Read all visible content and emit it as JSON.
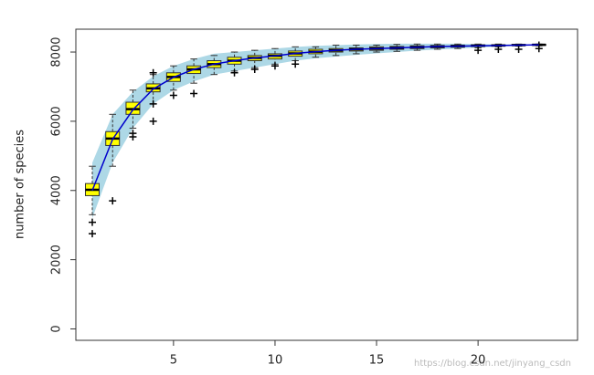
{
  "chart_data": {
    "type": "boxplot",
    "ylabel": "number of species",
    "x": [
      1,
      2,
      3,
      4,
      5,
      6,
      7,
      8,
      9,
      10,
      11,
      12,
      13,
      14,
      15,
      16,
      17,
      18,
      19,
      20,
      21,
      22,
      23
    ],
    "xlim": [
      0.19,
      24.9
    ],
    "xticks": [
      5,
      10,
      15,
      20
    ],
    "ylim": [
      -330,
      8660
    ],
    "yticks": [
      0,
      2000,
      4000,
      6000,
      8000
    ],
    "band": {
      "color": "#add8e6",
      "lower": [
        3200,
        4800,
        5800,
        6500,
        6900,
        7150,
        7350,
        7450,
        7550,
        7650,
        7750,
        7820,
        7870,
        7920,
        7960,
        8000,
        8040,
        8070,
        8100,
        8130,
        8160,
        8180,
        8200
      ],
      "upper": [
        4800,
        6200,
        6850,
        7300,
        7600,
        7800,
        7950,
        8000,
        8050,
        8100,
        8150,
        8180,
        8200,
        8220,
        8230,
        8240,
        8240,
        8240,
        8240,
        8230,
        8220,
        8220,
        8220
      ]
    },
    "mean": {
      "color": "#0000cc",
      "values": [
        4000,
        5480,
        6330,
        6930,
        7270,
        7500,
        7650,
        7750,
        7830,
        7890,
        7960,
        8010,
        8050,
        8080,
        8100,
        8120,
        8140,
        8160,
        8170,
        8180,
        8190,
        8200,
        8210
      ]
    },
    "box_color": "#ffff00",
    "boxes": [
      {
        "whislo": 3300,
        "q1": 3850,
        "med": 4020,
        "q3": 4200,
        "whishi": 4700,
        "fliers": [
          3080,
          2750
        ]
      },
      {
        "whislo": 4700,
        "q1": 5300,
        "med": 5500,
        "q3": 5700,
        "whishi": 6200,
        "fliers": [
          3700
        ]
      },
      {
        "whislo": 5800,
        "q1": 6200,
        "med": 6350,
        "q3": 6550,
        "whishi": 6900,
        "fliers": [
          5550,
          5650
        ]
      },
      {
        "whislo": 6500,
        "q1": 6850,
        "med": 6950,
        "q3": 7080,
        "whishi": 7350,
        "fliers": [
          6000,
          6500,
          7400
        ]
      },
      {
        "whislo": 6900,
        "q1": 7150,
        "med": 7280,
        "q3": 7400,
        "whishi": 7600,
        "fliers": [
          6750
        ]
      },
      {
        "whislo": 7100,
        "q1": 7380,
        "med": 7500,
        "q3": 7600,
        "whishi": 7800,
        "fliers": [
          6800
        ]
      },
      {
        "whislo": 7350,
        "q1": 7550,
        "med": 7650,
        "q3": 7750,
        "whishi": 7900,
        "fliers": []
      },
      {
        "whislo": 7450,
        "q1": 7650,
        "med": 7750,
        "q3": 7850,
        "whishi": 8000,
        "fliers": [
          7400
        ]
      },
      {
        "whislo": 7550,
        "q1": 7750,
        "med": 7830,
        "q3": 7900,
        "whishi": 8050,
        "fliers": [
          7500
        ]
      },
      {
        "whislo": 7650,
        "q1": 7800,
        "med": 7890,
        "q3": 7950,
        "whishi": 8100,
        "fliers": [
          7600
        ]
      },
      {
        "whislo": 7750,
        "q1": 7880,
        "med": 7960,
        "q3": 8030,
        "whishi": 8150,
        "fliers": [
          7650
        ]
      },
      {
        "whislo": 7850,
        "q1": 7950,
        "med": 8010,
        "q3": 8080,
        "whishi": 8150,
        "fliers": []
      },
      {
        "whislo": 7900,
        "q1": 8000,
        "med": 8050,
        "q3": 8100,
        "whishi": 8200,
        "fliers": []
      },
      {
        "whislo": 7950,
        "q1": 8030,
        "med": 8080,
        "q3": 8120,
        "whishi": 8200,
        "fliers": []
      },
      {
        "whislo": 8000,
        "q1": 8050,
        "med": 8100,
        "q3": 8150,
        "whishi": 8200,
        "fliers": []
      },
      {
        "whislo": 8020,
        "q1": 8080,
        "med": 8120,
        "q3": 8160,
        "whishi": 8220,
        "fliers": []
      },
      {
        "whislo": 8050,
        "q1": 8100,
        "med": 8140,
        "q3": 8180,
        "whishi": 8230,
        "fliers": []
      },
      {
        "whislo": 8080,
        "q1": 8120,
        "med": 8160,
        "q3": 8190,
        "whishi": 8230,
        "fliers": []
      },
      {
        "whislo": 8100,
        "q1": 8140,
        "med": 8170,
        "q3": 8200,
        "whishi": 8230,
        "fliers": []
      },
      {
        "whislo": 8120,
        "q1": 8160,
        "med": 8180,
        "q3": 8210,
        "whishi": 8230,
        "fliers": [
          8050
        ]
      },
      {
        "whislo": 8150,
        "q1": 8170,
        "med": 8190,
        "q3": 8210,
        "whishi": 8230,
        "fliers": [
          8080
        ]
      },
      {
        "whislo": 8170,
        "q1": 8190,
        "med": 8200,
        "q3": 8220,
        "whishi": 8230,
        "fliers": [
          8080
        ]
      },
      {
        "whislo": 8180,
        "q1": 8200,
        "med": 8210,
        "q3": 8220,
        "whishi": 8230,
        "fliers": [
          8100,
          8200
        ]
      }
    ],
    "watermark": "https://blog.csdn.net/jinyang_csdn"
  }
}
